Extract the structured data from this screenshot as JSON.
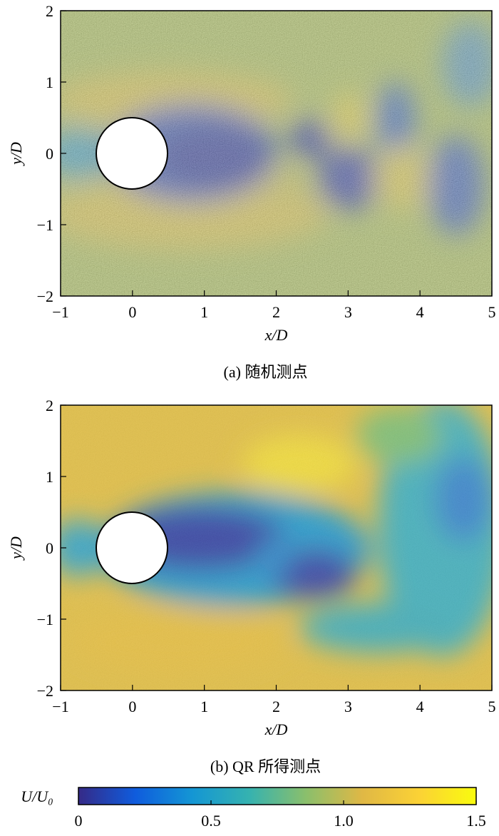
{
  "chart_data": [
    {
      "type": "heatmap",
      "caption": "(a) 随机测点",
      "xlabel": "x/D",
      "ylabel": "y/D",
      "xlim": [
        -1,
        5
      ],
      "ylim": [
        -2,
        2
      ],
      "xticks": [
        {
          "value": -1,
          "label": "−1"
        },
        0,
        1,
        2,
        3,
        4,
        5
      ],
      "yticks": [
        {
          "value": -2,
          "label": "−2"
        },
        {
          "value": -1,
          "label": "−1"
        },
        0,
        1,
        2
      ]
    },
    {
      "type": "heatmap",
      "caption": "(b) QR 所得测点",
      "xlabel": "x/D",
      "ylabel": "y/D",
      "xlim": [
        -1,
        5
      ],
      "ylim": [
        -2,
        2
      ],
      "xticks": [
        {
          "value": -1,
          "label": "−1"
        },
        0,
        1,
        2,
        3,
        4,
        5
      ],
      "yticks": [
        {
          "value": -2,
          "label": "−2"
        },
        {
          "value": -1,
          "label": "−1"
        },
        0,
        1,
        2
      ]
    },
    {
      "type": "colorbar",
      "label": "U/U₀",
      "xlim": [
        0,
        1.5
      ],
      "xticks": [
        0,
        0.5,
        {
          "value": 1,
          "label": "1.0"
        },
        1.5
      ],
      "colormap": [
        "#352a87",
        "#0f5cdd",
        "#1496d4",
        "#35b2b0",
        "#8abf6c",
        "#e0b845",
        "#fbd235",
        "#f9fb0e"
      ]
    }
  ]
}
